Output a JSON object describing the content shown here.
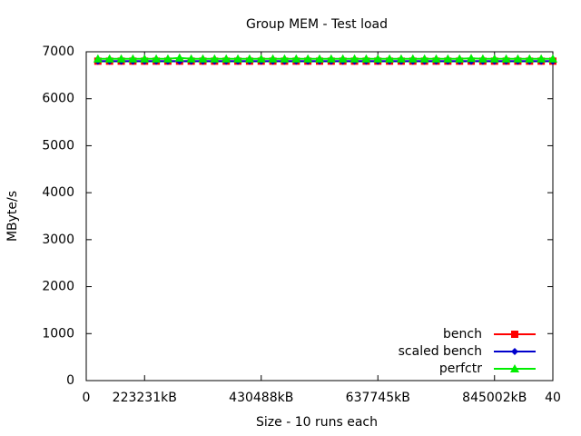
{
  "chart_data": {
    "type": "line",
    "title": "Group MEM - Test load",
    "xlabel": "Size - 10 runs each",
    "ylabel": "MByte/s",
    "x": [
      1,
      2,
      3,
      4,
      5,
      6,
      7,
      8,
      9,
      10,
      11,
      12,
      13,
      14,
      15,
      16,
      17,
      18,
      19,
      20,
      21,
      22,
      23,
      24,
      25,
      26,
      27,
      28,
      29,
      30,
      31,
      32,
      33,
      34,
      35,
      36,
      37,
      38,
      39,
      40
    ],
    "xlim": [
      0,
      40
    ],
    "xticks": [
      0,
      {
        "value": 5,
        "label": "223231kB"
      },
      {
        "value": 15,
        "label": "430488kB"
      },
      {
        "value": 25,
        "label": "637745kB"
      },
      {
        "value": 35,
        "label": "845002kB"
      },
      40
    ],
    "ylim": [
      0,
      7000
    ],
    "yticks": [
      0,
      1000,
      2000,
      3000,
      4000,
      5000,
      6000,
      7000
    ],
    "legend": "bottom-right",
    "series": [
      {
        "name": "bench",
        "color": "#ff0000",
        "marker": "square",
        "values": [
          6800,
          6800,
          6800,
          6800,
          6800,
          6800,
          6800,
          6800,
          6800,
          6800,
          6800,
          6800,
          6800,
          6800,
          6800,
          6800,
          6800,
          6800,
          6800,
          6800,
          6800,
          6800,
          6800,
          6800,
          6800,
          6800,
          6800,
          6800,
          6800,
          6800,
          6800,
          6800,
          6800,
          6800,
          6800,
          6800,
          6800,
          6800,
          6800,
          6800
        ]
      },
      {
        "name": "scaled bench",
        "color": "#0000cc",
        "marker": "diamond",
        "values": [
          6800,
          6800,
          6800,
          6800,
          6800,
          6800,
          6800,
          6800,
          6800,
          6800,
          6800,
          6800,
          6800,
          6800,
          6800,
          6800,
          6800,
          6800,
          6800,
          6800,
          6800,
          6800,
          6800,
          6800,
          6800,
          6800,
          6800,
          6800,
          6800,
          6800,
          6800,
          6800,
          6800,
          6800,
          6800,
          6800,
          6800,
          6800,
          6800,
          6800
        ]
      },
      {
        "name": "perfctr",
        "color": "#00ee00",
        "marker": "triangle",
        "values": [
          6850,
          6850,
          6850,
          6850,
          6850,
          6850,
          6850,
          6870,
          6850,
          6850,
          6850,
          6850,
          6850,
          6850,
          6850,
          6850,
          6850,
          6850,
          6850,
          6850,
          6850,
          6850,
          6850,
          6850,
          6850,
          6850,
          6850,
          6850,
          6850,
          6850,
          6850,
          6850,
          6860,
          6850,
          6850,
          6850,
          6850,
          6850,
          6850,
          6850
        ]
      }
    ]
  }
}
